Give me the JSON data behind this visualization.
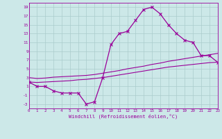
{
  "x": [
    0,
    1,
    2,
    3,
    4,
    5,
    6,
    7,
    8,
    9,
    10,
    11,
    12,
    13,
    14,
    15,
    16,
    17,
    18,
    19,
    20,
    21,
    22,
    23
  ],
  "y_curve": [
    2,
    1,
    1,
    0,
    -0.5,
    -0.5,
    -0.5,
    -3,
    -2.5,
    3,
    10.5,
    13,
    13.5,
    16,
    18.5,
    19,
    17.5,
    15,
    13,
    11.5,
    11,
    8,
    8,
    6.5
  ],
  "y_line_upper": [
    3,
    2.8,
    2.9,
    3.1,
    3.2,
    3.3,
    3.4,
    3.5,
    3.7,
    4.0,
    4.3,
    4.6,
    5.0,
    5.3,
    5.6,
    6.0,
    6.3,
    6.7,
    7.0,
    7.3,
    7.6,
    7.9,
    8.2,
    8.5
  ],
  "y_line_lower": [
    2,
    1.9,
    2.0,
    2.1,
    2.2,
    2.3,
    2.5,
    2.6,
    2.8,
    3.0,
    3.3,
    3.6,
    3.9,
    4.2,
    4.5,
    4.8,
    5.1,
    5.4,
    5.6,
    5.8,
    6.0,
    6.2,
    6.4,
    6.5
  ],
  "color": "#990099",
  "bg_color": "#cce8e8",
  "grid_color": "#aacccc",
  "xlabel": "Windchill (Refroidissement éolien,°C)",
  "ylim": [
    -4,
    20
  ],
  "xlim": [
    0,
    23
  ],
  "yticks": [
    -3,
    -1,
    1,
    3,
    5,
    7,
    9,
    11,
    13,
    15,
    17,
    19
  ],
  "xticks": [
    0,
    1,
    2,
    3,
    4,
    5,
    6,
    7,
    8,
    9,
    10,
    11,
    12,
    13,
    14,
    15,
    16,
    17,
    18,
    19,
    20,
    21,
    22,
    23
  ]
}
